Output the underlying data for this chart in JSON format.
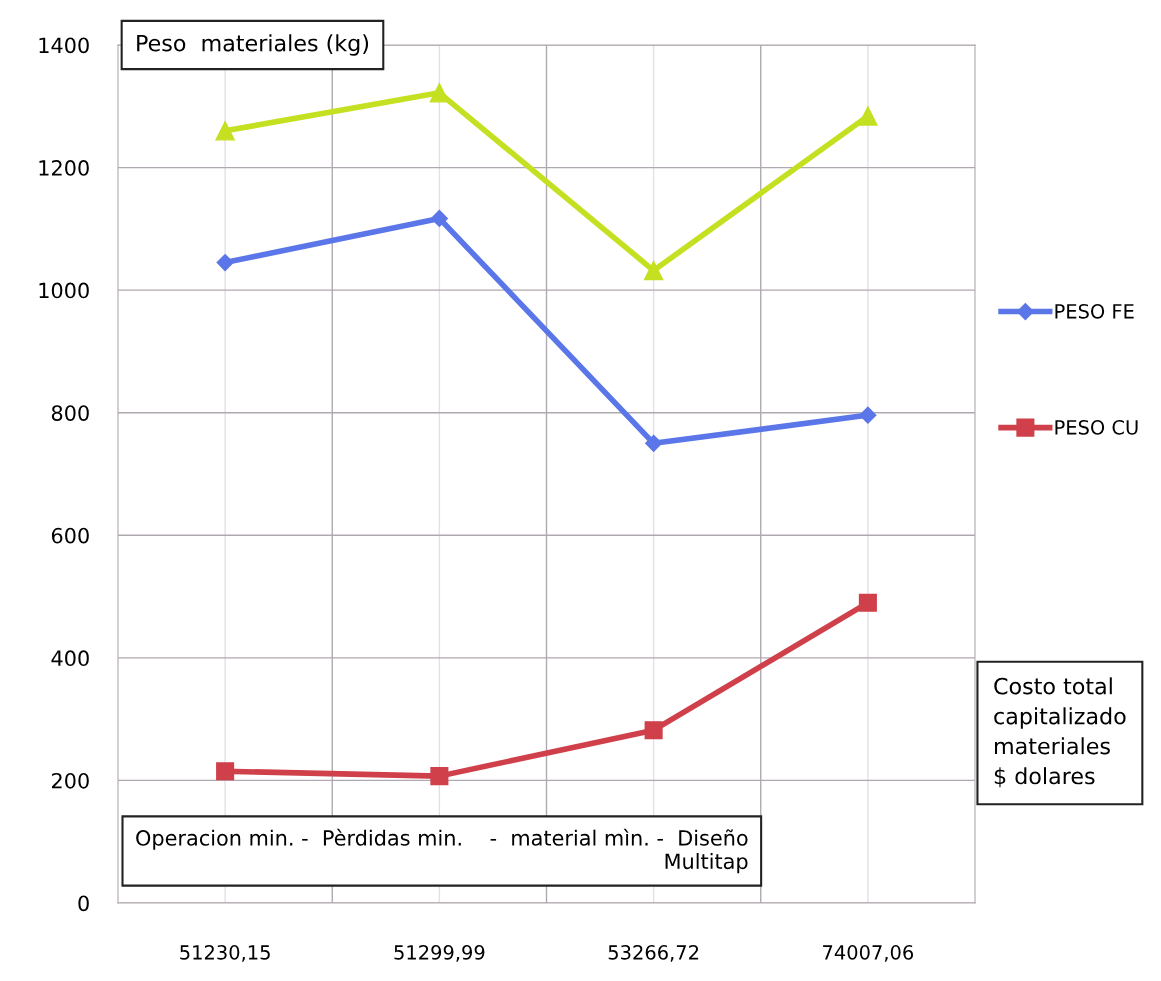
{
  "chart_data": {
    "type": "line",
    "ylabel": "Peso  materiales (kg)",
    "xlabel": "Costo total\ncapitalizado\nmateriales\n$ dolares",
    "categories": [
      "51230,15",
      "51299,99",
      "53266,72",
      "74007,06"
    ],
    "series": [
      {
        "name": "PESO FE",
        "color": "#5b76e8",
        "marker": "diamond",
        "values": [
          1045,
          1117,
          750,
          796
        ]
      },
      {
        "name": "PESO CU",
        "color": "#d0404a",
        "marker": "square",
        "values": [
          215,
          207,
          282,
          490
        ]
      },
      {
        "color": "#c5e020",
        "marker": "triangle",
        "values": [
          1260,
          1322,
          1032,
          1284
        ]
      }
    ],
    "ylim": [
      0,
      1400
    ],
    "yticks": [
      0,
      200,
      400,
      600,
      800,
      1000,
      1200,
      1400
    ],
    "grid": true,
    "legend": "right",
    "line_style": "solid",
    "annotations": [
      "Operacion min. -  Pèrdidas min.    -  material mìn. -  Diseño\nMultitap"
    ]
  }
}
